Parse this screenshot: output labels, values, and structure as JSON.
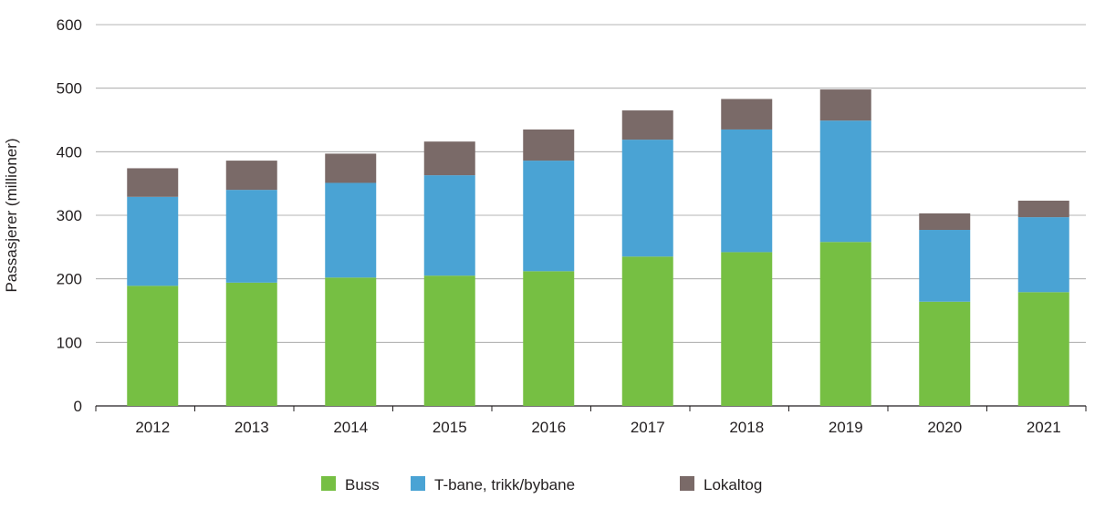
{
  "chart_data": {
    "type": "bar",
    "stacked": true,
    "title": "",
    "xlabel": "",
    "ylabel": "Passasjerer (millioner)",
    "ylim": [
      0,
      600
    ],
    "yticks": [
      0,
      100,
      200,
      300,
      400,
      500,
      600
    ],
    "grid": true,
    "legend_position": "bottom",
    "categories": [
      "2012",
      "2013",
      "2014",
      "2015",
      "2016",
      "2017",
      "2018",
      "2019",
      "2020",
      "2021"
    ],
    "series": [
      {
        "name": "Buss",
        "color": "#76bf43",
        "values": [
          189,
          194,
          202,
          205,
          212,
          235,
          242,
          258,
          164,
          179
        ]
      },
      {
        "name": "T-bane, trikk/bybane",
        "color": "#4aa3d4",
        "values": [
          140,
          146,
          149,
          158,
          174,
          184,
          193,
          191,
          113,
          118
        ]
      },
      {
        "name": "Lokaltog",
        "color": "#7a6a68",
        "values": [
          45,
          46,
          46,
          53,
          49,
          46,
          48,
          49,
          26,
          26
        ]
      }
    ]
  }
}
